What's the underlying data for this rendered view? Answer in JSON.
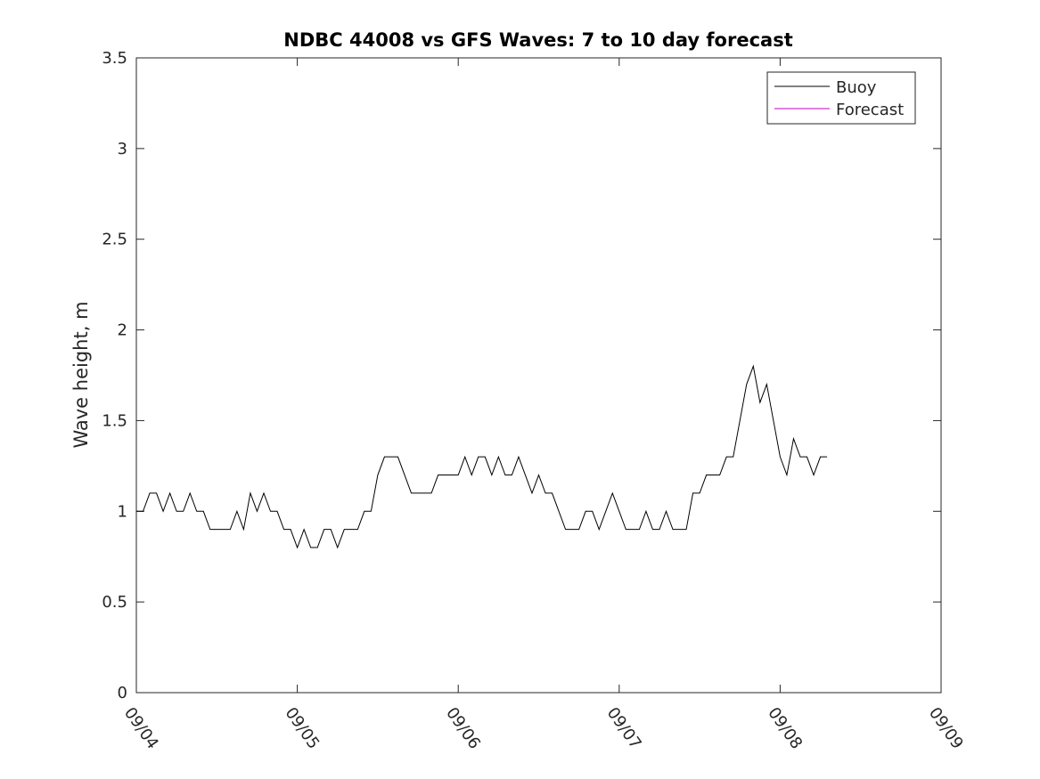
{
  "chart_data": {
    "type": "line",
    "title": "NDBC 44008 vs GFS Waves: 7 to 10 day forecast",
    "xlabel": "",
    "ylabel": "Wave height, m",
    "x_unit": "date (September)",
    "xlim": [
      "09/04 00:00",
      "09/09 00:00"
    ],
    "ylim": [
      0,
      3.5
    ],
    "x_tick_labels": [
      "09/04",
      "09/05",
      "09/06",
      "09/07",
      "09/08",
      "09/09"
    ],
    "y_tick_labels": [
      "0",
      "0.5",
      "1",
      "1.5",
      "2",
      "2.5",
      "3",
      "3.5"
    ],
    "y_ticks": [
      0,
      0.5,
      1,
      1.5,
      2,
      2.5,
      3,
      3.5
    ],
    "grid": false,
    "legend_position": "top-right",
    "series": [
      {
        "name": "Buoy",
        "color": "#000000",
        "x": [
          "09/04 00:00",
          "09/04 01:00",
          "09/04 02:00",
          "09/04 03:00",
          "09/04 04:00",
          "09/04 05:00",
          "09/04 06:00",
          "09/04 07:00",
          "09/04 08:00",
          "09/04 09:00",
          "09/04 10:00",
          "09/04 11:00",
          "09/04 12:00",
          "09/04 13:00",
          "09/04 14:00",
          "09/04 15:00",
          "09/04 16:00",
          "09/04 17:00",
          "09/04 18:00",
          "09/04 19:00",
          "09/04 20:00",
          "09/04 21:00",
          "09/04 22:00",
          "09/04 23:00",
          "09/05 00:00",
          "09/05 01:00",
          "09/05 02:00",
          "09/05 03:00",
          "09/05 04:00",
          "09/05 05:00",
          "09/05 06:00",
          "09/05 07:00",
          "09/05 08:00",
          "09/05 09:00",
          "09/05 10:00",
          "09/05 11:00",
          "09/05 12:00",
          "09/05 13:00",
          "09/05 14:00",
          "09/05 15:00",
          "09/05 16:00",
          "09/05 17:00",
          "09/05 18:00",
          "09/05 19:00",
          "09/05 20:00",
          "09/05 21:00",
          "09/05 22:00",
          "09/05 23:00",
          "09/06 00:00",
          "09/06 01:00",
          "09/06 02:00",
          "09/06 03:00",
          "09/06 04:00",
          "09/06 05:00",
          "09/06 06:00",
          "09/06 07:00",
          "09/06 08:00",
          "09/06 09:00",
          "09/06 10:00",
          "09/06 11:00",
          "09/06 12:00",
          "09/06 13:00",
          "09/06 14:00",
          "09/06 15:00",
          "09/06 16:00",
          "09/06 17:00",
          "09/06 18:00",
          "09/06 19:00",
          "09/06 20:00",
          "09/06 21:00",
          "09/06 22:00",
          "09/06 23:00",
          "09/07 00:00",
          "09/07 01:00",
          "09/07 02:00",
          "09/07 03:00",
          "09/07 04:00",
          "09/07 05:00",
          "09/07 06:00",
          "09/07 07:00",
          "09/07 08:00",
          "09/07 09:00",
          "09/07 10:00",
          "09/07 11:00",
          "09/07 12:00",
          "09/07 13:00",
          "09/07 14:00",
          "09/07 15:00",
          "09/07 16:00",
          "09/07 17:00",
          "09/07 18:00",
          "09/07 19:00",
          "09/07 20:00",
          "09/07 21:00",
          "09/07 22:00",
          "09/07 23:00",
          "09/08 00:00",
          "09/08 01:00",
          "09/08 02:00",
          "09/08 03:00",
          "09/08 04:00",
          "09/08 05:00",
          "09/08 06:00",
          "09/08 07:00"
        ],
        "values": [
          1.0,
          1.0,
          1.1,
          1.1,
          1.0,
          1.1,
          1.0,
          1.0,
          1.1,
          1.0,
          1.0,
          0.9,
          0.9,
          0.9,
          0.9,
          1.0,
          0.9,
          1.1,
          1.0,
          1.1,
          1.0,
          1.0,
          0.9,
          0.9,
          0.8,
          0.9,
          0.8,
          0.8,
          0.9,
          0.9,
          0.8,
          0.9,
          0.9,
          0.9,
          1.0,
          1.0,
          1.2,
          1.3,
          1.3,
          1.3,
          1.2,
          1.1,
          1.1,
          1.1,
          1.1,
          1.2,
          1.2,
          1.2,
          1.2,
          1.3,
          1.2,
          1.3,
          1.3,
          1.2,
          1.3,
          1.2,
          1.2,
          1.3,
          1.2,
          1.1,
          1.2,
          1.1,
          1.1,
          1.0,
          0.9,
          0.9,
          0.9,
          1.0,
          1.0,
          0.9,
          1.0,
          1.1,
          1.0,
          0.9,
          0.9,
          0.9,
          1.0,
          0.9,
          0.9,
          1.0,
          0.9,
          0.9,
          0.9,
          1.1,
          1.1,
          1.2,
          1.2,
          1.2,
          1.3,
          1.3,
          1.5,
          1.7,
          1.8,
          1.6,
          1.7,
          1.5,
          1.3,
          1.2,
          1.4,
          1.3,
          1.3,
          1.2,
          1.3,
          1.3
        ]
      },
      {
        "name": "Forecast",
        "color": "#bf00bf",
        "x": [],
        "values": []
      }
    ]
  }
}
